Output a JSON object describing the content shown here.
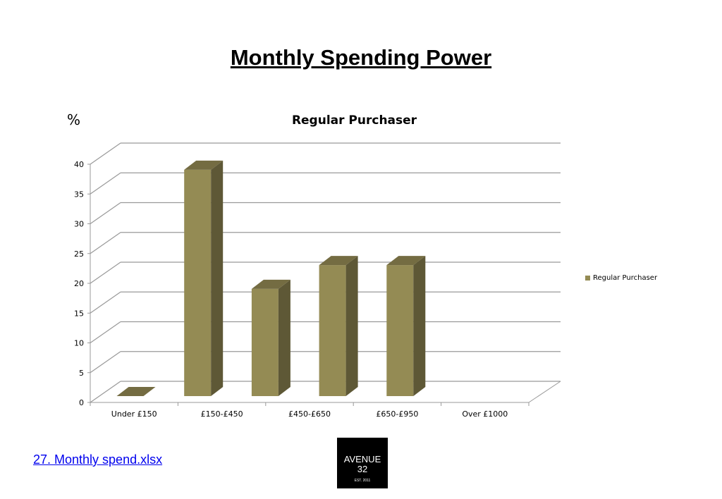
{
  "page_title": "Monthly Spending Power",
  "footer": {
    "link_text": "27. Monthly spend.xlsx",
    "logo": {
      "line1": "AVENUE",
      "line2": "32",
      "tagline": "EST. 2011"
    }
  },
  "chart_data": {
    "type": "bar",
    "style": "3d-column",
    "title": "Regular Purchaser",
    "ylabel": "%",
    "xlabel": "",
    "categories": [
      "Under £150",
      "£150-£450",
      "£450-£650",
      "£650-£950",
      "Over £1000"
    ],
    "series": [
      {
        "name": "Regular Purchaser",
        "values": [
          0,
          38,
          18,
          22,
          22
        ],
        "color": "#948b54"
      }
    ],
    "ylim": [
      0,
      40
    ],
    "yticks": [
      0,
      5,
      10,
      15,
      20,
      25,
      30,
      35,
      40
    ],
    "grid": true,
    "legend": "right"
  }
}
